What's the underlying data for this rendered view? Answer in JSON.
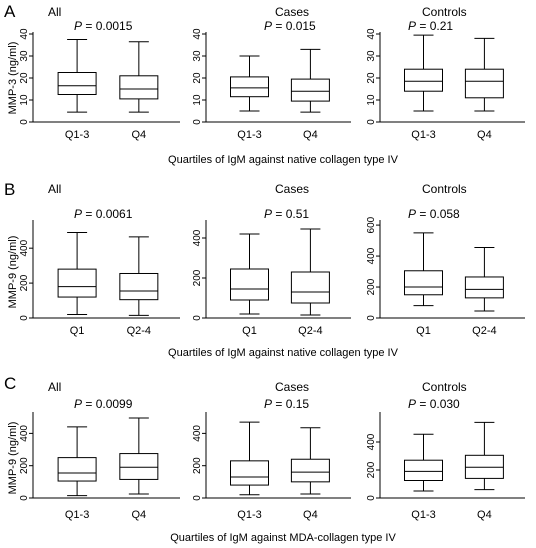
{
  "chart_data": [
    {
      "letter": "A",
      "ylabel": "MMP-3  (ng/ml)",
      "xlabel": "Quartiles of IgM against native collagen type IV",
      "type": "box",
      "subplots": [
        {
          "title": "All",
          "p_label": "P",
          "p_value": "= 0.0015",
          "ylim": [
            0,
            40
          ],
          "yticks": [
            0,
            10,
            20,
            30,
            40
          ],
          "categories": [
            "Q1-3",
            "Q4"
          ],
          "boxes": [
            {
              "whisker_low": 4.5,
              "q1": 12.5,
              "median": 16.5,
              "q3": 22.5,
              "whisker_high": 37.5
            },
            {
              "whisker_low": 4.5,
              "q1": 10.5,
              "median": 15,
              "q3": 21,
              "whisker_high": 36.5
            }
          ]
        },
        {
          "title": "Cases",
          "p_label": "P",
          "p_value": "= 0.015",
          "ylim": [
            0,
            40
          ],
          "yticks": [
            0,
            10,
            20,
            30,
            40
          ],
          "categories": [
            "Q1-3",
            "Q4"
          ],
          "boxes": [
            {
              "whisker_low": 5,
              "q1": 11.5,
              "median": 15.5,
              "q3": 20.5,
              "whisker_high": 30
            },
            {
              "whisker_low": 4.5,
              "q1": 9.5,
              "median": 14,
              "q3": 19.5,
              "whisker_high": 33
            }
          ]
        },
        {
          "title": "Controls",
          "p_label": "P",
          "p_value": "= 0.21",
          "ylim": [
            0,
            40
          ],
          "yticks": [
            0,
            10,
            20,
            30,
            40
          ],
          "categories": [
            "Q1-3",
            "Q4"
          ],
          "boxes": [
            {
              "whisker_low": 5,
              "q1": 14,
              "median": 18.5,
              "q3": 24,
              "whisker_high": 39.5
            },
            {
              "whisker_low": 5,
              "q1": 11,
              "median": 18.5,
              "q3": 24,
              "whisker_high": 38
            }
          ]
        }
      ]
    },
    {
      "letter": "B",
      "ylabel": "MMP-9  (ng/ml)",
      "xlabel": "Quartiles of IgM against native collagen type IV",
      "type": "box",
      "subplots": [
        {
          "title": "All",
          "p_label": "P",
          "p_value": "= 0.0061",
          "ylim": [
            0,
            550
          ],
          "yticks": [
            0,
            200,
            400
          ],
          "categories": [
            "Q1",
            "Q2-4"
          ],
          "boxes": [
            {
              "whisker_low": 20,
              "q1": 120,
              "median": 180,
              "q3": 280,
              "whisker_high": 490
            },
            {
              "whisker_low": 15,
              "q1": 105,
              "median": 155,
              "q3": 255,
              "whisker_high": 465
            }
          ]
        },
        {
          "title": "Cases",
          "p_label": "P",
          "p_value": "= 0.51",
          "ylim": [
            0,
            480
          ],
          "yticks": [
            0,
            200,
            400
          ],
          "categories": [
            "Q1",
            "Q2-4"
          ],
          "boxes": [
            {
              "whisker_low": 20,
              "q1": 90,
              "median": 145,
              "q3": 245,
              "whisker_high": 420
            },
            {
              "whisker_low": 15,
              "q1": 75,
              "median": 130,
              "q3": 230,
              "whisker_high": 445
            }
          ]
        },
        {
          "title": "Controls",
          "p_label": "P",
          "p_value": "= 0.058",
          "ylim": [
            0,
            620
          ],
          "yticks": [
            0,
            200,
            400,
            600
          ],
          "categories": [
            "Q1",
            "Q2-4"
          ],
          "boxes": [
            {
              "whisker_low": 80,
              "q1": 150,
              "median": 200,
              "q3": 305,
              "whisker_high": 550
            },
            {
              "whisker_low": 45,
              "q1": 130,
              "median": 185,
              "q3": 265,
              "whisker_high": 455
            }
          ]
        }
      ]
    },
    {
      "letter": "C",
      "ylabel": "MMP-9  (ng/ml)",
      "xlabel": "Quartiles of IgM against MDA-collagen type IV",
      "type": "box",
      "subplots": [
        {
          "title": "All",
          "p_label": "P",
          "p_value": "= 0.0099",
          "ylim": [
            0,
            520
          ],
          "yticks": [
            0,
            200,
            400
          ],
          "categories": [
            "Q1-3",
            "Q4"
          ],
          "boxes": [
            {
              "whisker_low": 15,
              "q1": 105,
              "median": 155,
              "q3": 250,
              "whisker_high": 440
            },
            {
              "whisker_low": 25,
              "q1": 115,
              "median": 190,
              "q3": 275,
              "whisker_high": 495
            }
          ]
        },
        {
          "title": "Cases",
          "p_label": "P",
          "p_value": "= 0.15",
          "ylim": [
            0,
            520
          ],
          "yticks": [
            0,
            200,
            400
          ],
          "categories": [
            "Q1-3",
            "Q4"
          ],
          "boxes": [
            {
              "whisker_low": 20,
              "q1": 80,
              "median": 130,
              "q3": 230,
              "whisker_high": 470
            },
            {
              "whisker_low": 25,
              "q1": 100,
              "median": 160,
              "q3": 240,
              "whisker_high": 435
            }
          ]
        },
        {
          "title": "Controls",
          "p_label": "P",
          "p_value": "= 0.030",
          "ylim": [
            0,
            600
          ],
          "yticks": [
            0,
            200,
            400
          ],
          "categories": [
            "Q1-3",
            "Q4"
          ],
          "boxes": [
            {
              "whisker_low": 50,
              "q1": 125,
              "median": 190,
              "q3": 270,
              "whisker_high": 455
            },
            {
              "whisker_low": 60,
              "q1": 140,
              "median": 220,
              "q3": 305,
              "whisker_high": 540
            }
          ]
        }
      ]
    }
  ]
}
